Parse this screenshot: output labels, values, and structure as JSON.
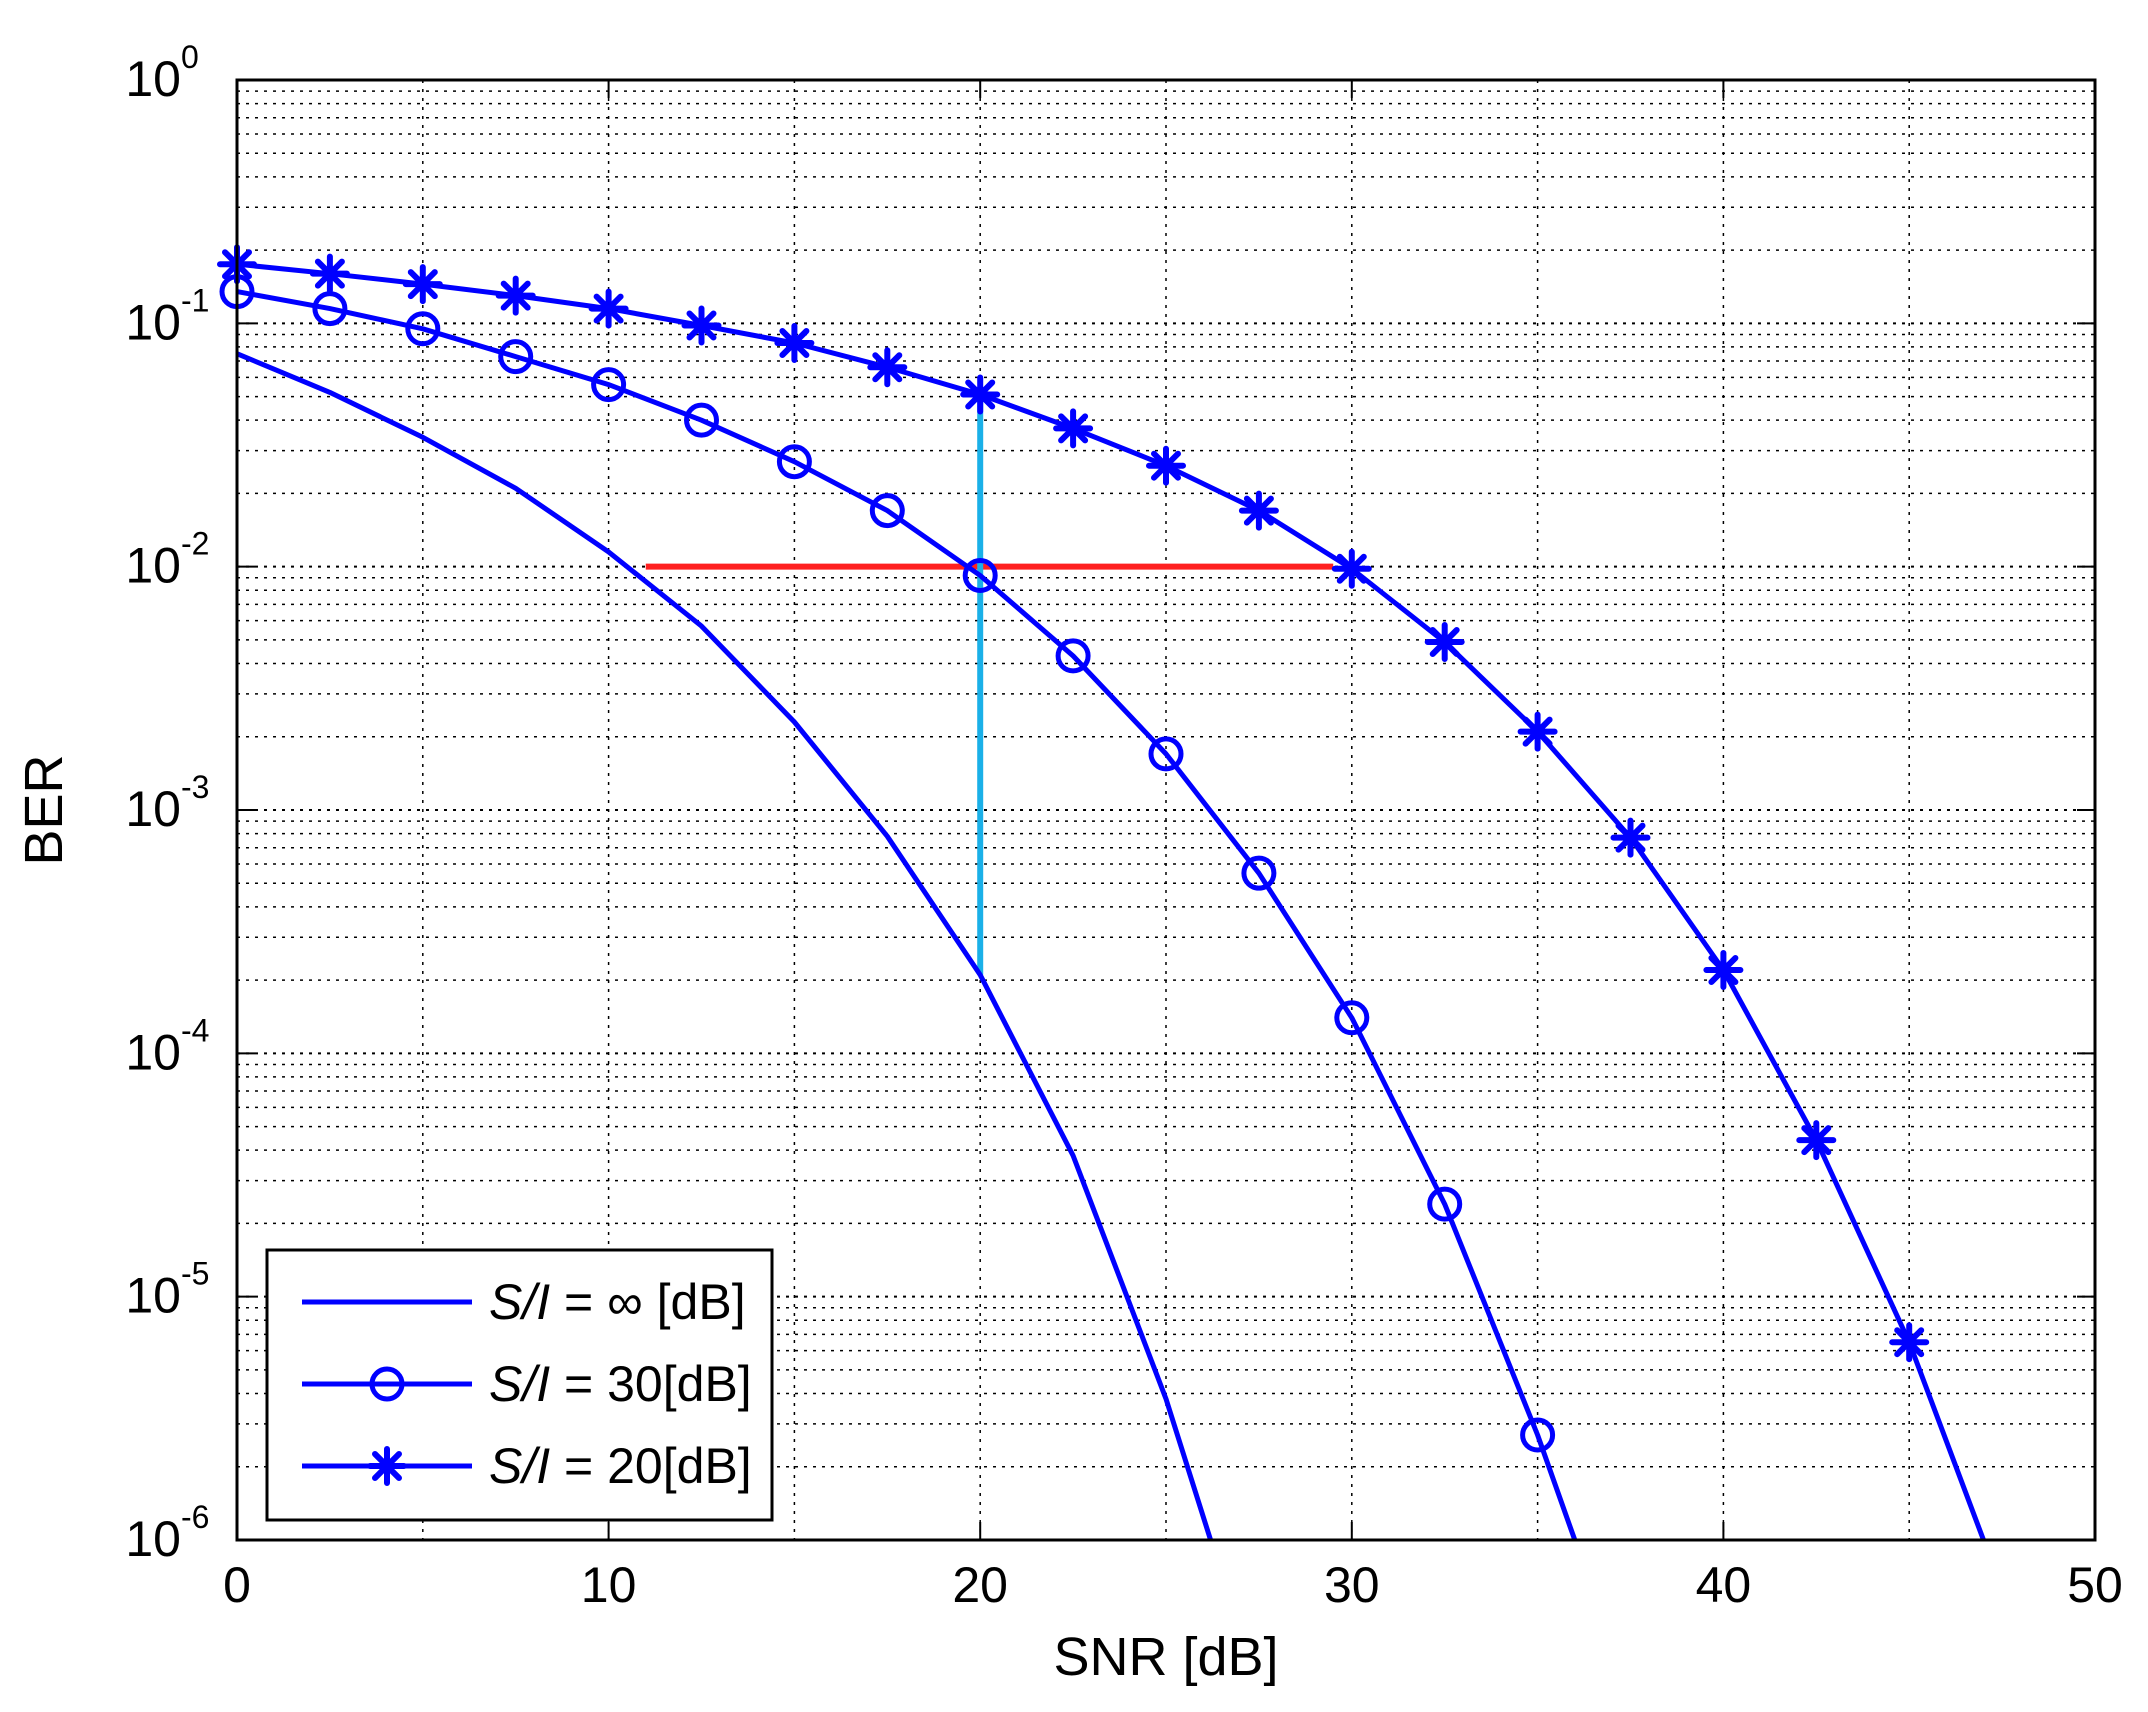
{
  "chart_data": {
    "type": "line",
    "xlabel": "SNR [dB]",
    "ylabel": "BER",
    "xlim": [
      0,
      50
    ],
    "ylim": [
      1e-06,
      1
    ],
    "yscale": "log",
    "grid": true,
    "legend_position": "bottom-left",
    "x_ticks": [
      "0",
      "10",
      "20",
      "30",
      "40",
      "50"
    ],
    "y_ticks": [
      {
        "base": "10",
        "exp": "0",
        "value": 1
      },
      {
        "base": "10",
        "exp": "-1",
        "value": 0.1
      },
      {
        "base": "10",
        "exp": "-2",
        "value": 0.01
      },
      {
        "base": "10",
        "exp": "-3",
        "value": 0.001
      },
      {
        "base": "10",
        "exp": "-4",
        "value": 0.0001
      },
      {
        "base": "10",
        "exp": "-5",
        "value": 1e-05
      },
      {
        "base": "10",
        "exp": "-6",
        "value": 1e-06
      }
    ],
    "series": [
      {
        "name": "S/I = ∞ [dB]",
        "legend_italic": "S/I",
        "legend_rest": " = ∞ [dB]",
        "color": "#0000ff",
        "marker": "none",
        "x": [
          0,
          2.5,
          5,
          7.5,
          10,
          12.5,
          15,
          17.5,
          20,
          22.5,
          25,
          26.2
        ],
        "y": [
          0.075,
          0.052,
          0.034,
          0.021,
          0.0115,
          0.0057,
          0.0023,
          0.00078,
          0.00021,
          3.8e-05,
          3.8e-06,
          1e-06
        ]
      },
      {
        "name": "S/I = 30[dB]",
        "legend_italic": "S/I",
        "legend_rest": " = 30[dB]",
        "color": "#0000ff",
        "marker": "circle",
        "x": [
          0,
          2.5,
          5,
          7.5,
          10,
          12.5,
          15,
          17.5,
          20,
          22.5,
          25,
          27.5,
          30,
          32.5,
          35,
          36
        ],
        "y": [
          0.135,
          0.115,
          0.095,
          0.073,
          0.056,
          0.04,
          0.027,
          0.017,
          0.0092,
          0.0043,
          0.0017,
          0.00055,
          0.00014,
          2.4e-05,
          2.7e-06,
          1e-06
        ]
      },
      {
        "name": "S/I = 20[dB]",
        "legend_italic": "S/I",
        "legend_rest": " = 20[dB]",
        "color": "#0000ff",
        "marker": "star",
        "x": [
          0,
          2.5,
          5,
          7.5,
          10,
          12.5,
          15,
          17.5,
          20,
          22.5,
          25,
          27.5,
          30,
          32.5,
          35,
          37.5,
          40,
          42.5,
          45,
          47
        ],
        "y": [
          0.175,
          0.16,
          0.145,
          0.13,
          0.115,
          0.098,
          0.083,
          0.066,
          0.051,
          0.037,
          0.026,
          0.017,
          0.0098,
          0.0049,
          0.0021,
          0.00077,
          0.00022,
          4.4e-05,
          6.5e-06,
          1e-06
        ]
      }
    ],
    "annotations": [
      {
        "kind": "horizontal",
        "color": "#ff2020",
        "x0": 11,
        "x1": 29.5,
        "y": 0.01
      },
      {
        "kind": "vertical",
        "color": "#1ab0e8",
        "x": 20,
        "y0": 0.00021,
        "y1": 0.051
      }
    ]
  }
}
